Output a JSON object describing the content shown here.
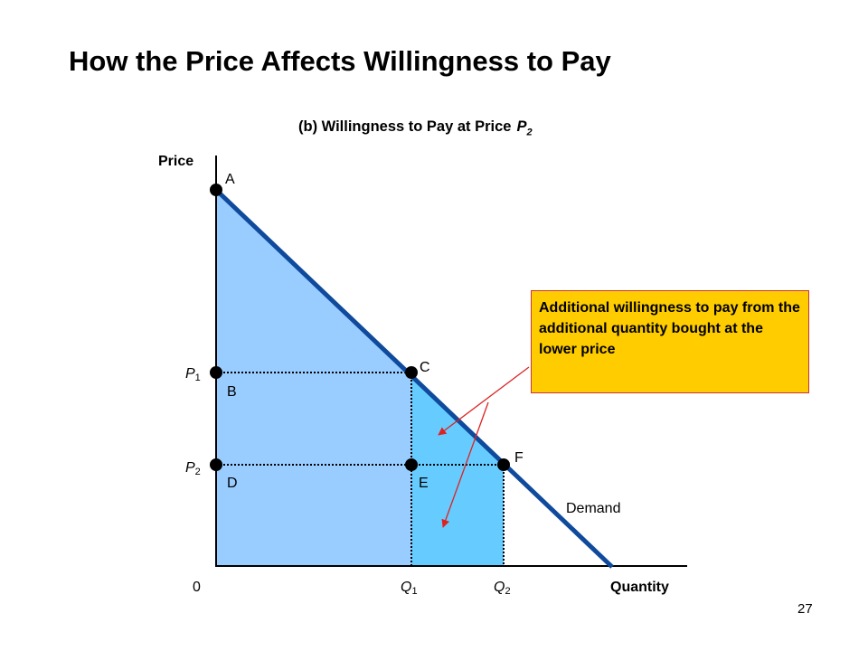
{
  "title": "How the Price Affects Willingness to Pay",
  "panel_title": {
    "text": "(b) Willingness to Pay at Price",
    "symbol": "P",
    "symbol_sub": "2"
  },
  "axes": {
    "y_label": "Price",
    "x_label": "Quantity",
    "origin_label": "0"
  },
  "ticks": {
    "p1": {
      "letter": "P",
      "sub": "1"
    },
    "p2": {
      "letter": "P",
      "sub": "2"
    },
    "q1": {
      "letter": "Q",
      "sub": "1"
    },
    "q2": {
      "letter": "Q",
      "sub": "2"
    }
  },
  "points": {
    "a": "A",
    "b": "B",
    "c": "C",
    "d": "D",
    "e": "E",
    "f": "F"
  },
  "curve_label": "Demand",
  "callout_text": "Additional willingness to pay from the additional quantity bought at the lower price",
  "page_number": "27",
  "colors": {
    "demand_line": "#0f4a9c",
    "surplus_fill": "#99ccff",
    "additional_fill": "#66ccff",
    "callout_fill": "#ffcc00",
    "arrow": "#dd2222"
  }
}
